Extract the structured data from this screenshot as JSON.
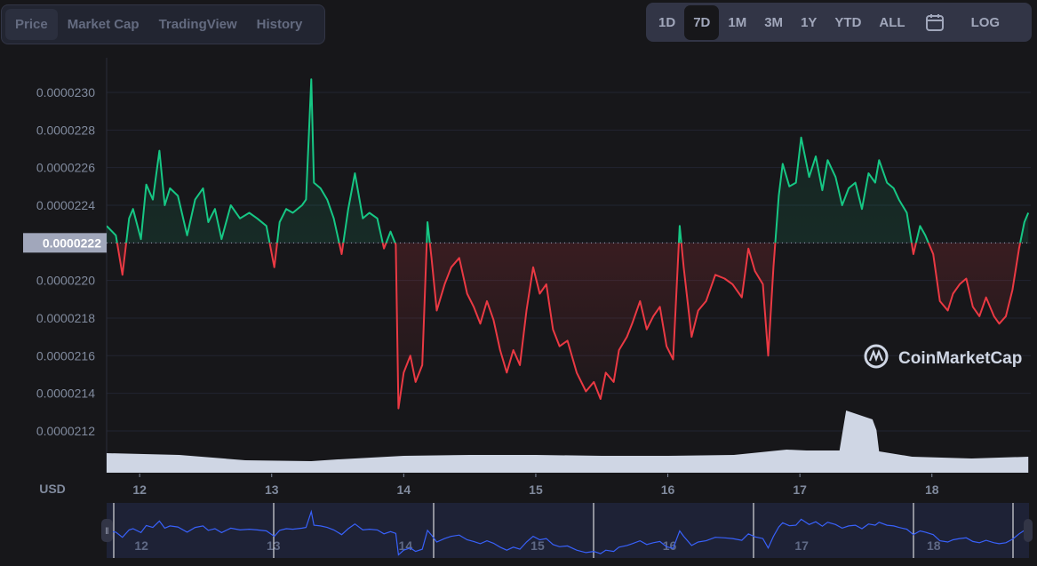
{
  "tabs": [
    {
      "label": "Price",
      "active": true
    },
    {
      "label": "Market Cap",
      "active": false
    },
    {
      "label": "TradingView",
      "active": false
    },
    {
      "label": "History",
      "active": false
    }
  ],
  "ranges": [
    {
      "label": "1D",
      "active": false
    },
    {
      "label": "7D",
      "active": true
    },
    {
      "label": "1M",
      "active": false
    },
    {
      "label": "3M",
      "active": false
    },
    {
      "label": "1Y",
      "active": false
    },
    {
      "label": "YTD",
      "active": false
    },
    {
      "label": "ALL",
      "active": false
    }
  ],
  "calendar_icon": "calendar-icon",
  "log_label": "LOG",
  "currency_label": "USD",
  "watermark": "CoinMarketCap",
  "colors": {
    "up": "#16c784",
    "down": "#ea3943",
    "navigator_line": "#3861fb",
    "volume": "#cfd6e4"
  },
  "chart_data": {
    "type": "line",
    "ylabel": "USD",
    "ylim": [
      2.11e-05,
      2.31e-05
    ],
    "y_ticks": [
      "0.0000230",
      "0.0000228",
      "0.0000226",
      "0.0000224",
      "0.0000222",
      "0.0000220",
      "0.0000218",
      "0.0000216",
      "0.0000214",
      "0.0000212"
    ],
    "y_tick_values": [
      2.3e-05,
      2.28e-05,
      2.26e-05,
      2.24e-05,
      2.22e-05,
      2.2e-05,
      2.18e-05,
      2.16e-05,
      2.14e-05,
      2.12e-05
    ],
    "baseline_label": "0.0000222",
    "baseline_value": 2.22e-05,
    "x_ticks": [
      "12",
      "13",
      "14",
      "15",
      "16",
      "17",
      "18"
    ],
    "x_tick_values": [
      12,
      13,
      14,
      15,
      16,
      17,
      18
    ],
    "xlim": [
      11.75,
      18.73
    ],
    "grid": true,
    "series": [
      {
        "x": [
          11.75,
          11.82,
          11.87,
          11.92,
          11.95,
          12.01,
          12.05,
          12.1,
          12.15,
          12.19,
          12.23,
          12.29,
          12.36,
          12.42,
          12.48,
          12.52,
          12.57,
          12.62,
          12.69,
          12.76,
          12.83,
          12.89,
          12.96,
          13.02,
          13.06,
          13.11,
          13.16,
          13.23,
          13.26,
          13.3,
          13.32,
          13.37,
          13.42,
          13.47,
          13.53,
          13.58,
          13.63,
          13.69,
          13.74,
          13.8,
          13.85,
          13.9,
          13.94,
          13.96,
          14.0,
          14.05,
          14.09,
          14.14,
          14.18,
          14.21,
          14.25,
          14.31,
          14.36,
          14.42,
          14.48,
          14.53,
          14.58,
          14.63,
          14.68,
          14.73,
          14.78,
          14.83,
          14.88,
          14.93,
          14.98,
          15.03,
          15.08,
          15.13,
          15.18,
          15.24,
          15.31,
          15.38,
          15.44,
          15.49,
          15.53,
          15.59,
          15.63,
          15.69,
          15.73,
          15.79,
          15.84,
          15.89,
          15.94,
          15.99,
          16.04,
          16.09,
          16.12,
          16.18,
          16.23,
          16.29,
          16.36,
          16.43,
          16.49,
          16.56,
          16.61,
          16.66,
          16.72,
          16.76,
          16.8,
          16.84,
          16.87,
          16.92,
          16.97,
          17.01,
          17.07,
          17.12,
          17.17,
          17.21,
          17.27,
          17.32,
          17.37,
          17.42,
          17.47,
          17.52,
          17.57,
          17.6,
          17.66,
          17.71,
          17.75,
          17.81,
          17.86,
          17.91,
          17.95,
          18.01,
          18.06,
          18.12,
          18.16,
          18.21,
          18.26,
          18.31,
          18.36,
          18.41,
          18.47,
          18.51,
          18.56,
          18.61,
          18.66,
          18.7,
          18.73
        ],
        "y": [
          2.229e-05,
          2.224e-05,
          2.203e-05,
          2.233e-05,
          2.238e-05,
          2.222e-05,
          2.251e-05,
          2.243e-05,
          2.269e-05,
          2.24e-05,
          2.249e-05,
          2.245e-05,
          2.224e-05,
          2.243e-05,
          2.249e-05,
          2.231e-05,
          2.238e-05,
          2.222e-05,
          2.24e-05,
          2.233e-05,
          2.236e-05,
          2.233e-05,
          2.229e-05,
          2.207e-05,
          2.231e-05,
          2.238e-05,
          2.236e-05,
          2.24e-05,
          2.243e-05,
          2.307e-05,
          2.252e-05,
          2.249e-05,
          2.243e-05,
          2.233e-05,
          2.214e-05,
          2.238e-05,
          2.257e-05,
          2.233e-05,
          2.236e-05,
          2.233e-05,
          2.217e-05,
          2.226e-05,
          2.219e-05,
          2.132e-05,
          2.151e-05,
          2.16e-05,
          2.146e-05,
          2.155e-05,
          2.231e-05,
          2.212e-05,
          2.184e-05,
          2.198e-05,
          2.207e-05,
          2.212e-05,
          2.193e-05,
          2.186e-05,
          2.177e-05,
          2.189e-05,
          2.179e-05,
          2.163e-05,
          2.151e-05,
          2.163e-05,
          2.155e-05,
          2.184e-05,
          2.207e-05,
          2.193e-05,
          2.198e-05,
          2.174e-05,
          2.165e-05,
          2.168e-05,
          2.151e-05,
          2.141e-05,
          2.146e-05,
          2.137e-05,
          2.151e-05,
          2.146e-05,
          2.163e-05,
          2.17e-05,
          2.177e-05,
          2.189e-05,
          2.174e-05,
          2.181e-05,
          2.186e-05,
          2.165e-05,
          2.158e-05,
          2.229e-05,
          2.207e-05,
          2.17e-05,
          2.184e-05,
          2.189e-05,
          2.203e-05,
          2.201e-05,
          2.198e-05,
          2.191e-05,
          2.217e-05,
          2.205e-05,
          2.198e-05,
          2.16e-05,
          2.207e-05,
          2.245e-05,
          2.262e-05,
          2.25e-05,
          2.252e-05,
          2.276e-05,
          2.255e-05,
          2.266e-05,
          2.248e-05,
          2.264e-05,
          2.255e-05,
          2.24e-05,
          2.249e-05,
          2.252e-05,
          2.238e-05,
          2.257e-05,
          2.252e-05,
          2.264e-05,
          2.252e-05,
          2.249e-05,
          2.243e-05,
          2.236e-05,
          2.214e-05,
          2.229e-05,
          2.224e-05,
          2.214e-05,
          2.189e-05,
          2.184e-05,
          2.193e-05,
          2.198e-05,
          2.201e-05,
          2.186e-05,
          2.181e-05,
          2.191e-05,
          2.181e-05,
          2.177e-05,
          2.181e-05,
          2.195e-05,
          2.217e-05,
          2.231e-05,
          2.236e-05
        ]
      }
    ],
    "volume": {
      "x": [
        11.75,
        12.3,
        12.8,
        13.3,
        13.5,
        14.0,
        14.5,
        15.0,
        15.5,
        16.0,
        16.5,
        16.9,
        17.05,
        17.3,
        17.35,
        17.55,
        17.58,
        17.6,
        17.85,
        18.3,
        18.73
      ],
      "y": [
        22,
        20,
        14,
        13,
        15,
        19,
        20,
        20,
        19,
        19,
        20,
        26,
        25,
        25,
        70,
        60,
        48,
        24,
        18,
        16,
        18
      ]
    }
  },
  "navigator": {
    "labels": [
      "12",
      "13",
      "14",
      "15",
      "16",
      "17",
      "18"
    ],
    "label_values": [
      12,
      13,
      14,
      15,
      16,
      17,
      18
    ]
  }
}
